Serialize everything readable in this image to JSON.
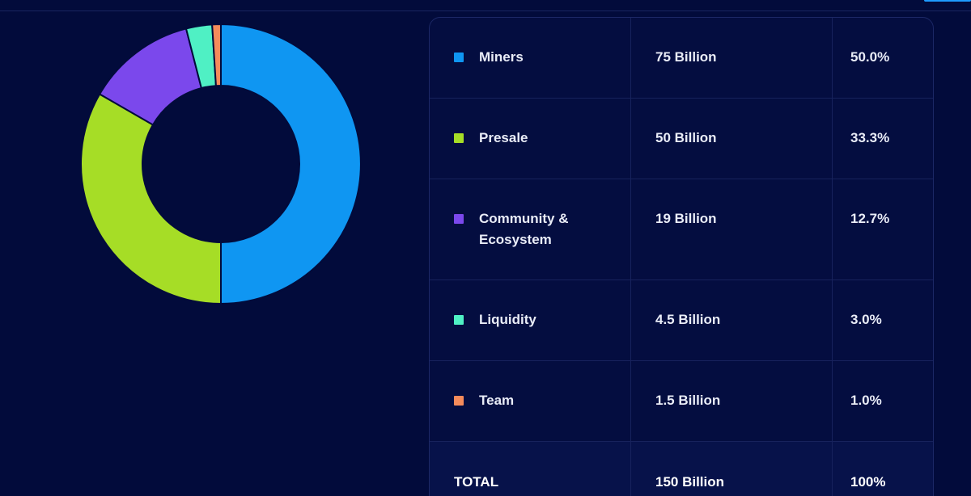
{
  "colors": {
    "background": "#020b3b",
    "miners": "#0f96f2",
    "presale": "#a6dd26",
    "community": "#7b48ec",
    "liquidity": "#4ff0c4",
    "team": "#f58b5b"
  },
  "chart_data": {
    "type": "pie",
    "subtype": "donut",
    "title": "",
    "start_angle": "top",
    "direction": "clockwise",
    "slices": [
      {
        "label": "Miners",
        "value": 75,
        "percent": 50.0,
        "color": "#0f96f2"
      },
      {
        "label": "Presale",
        "value": 50,
        "percent": 33.3,
        "color": "#a6dd26"
      },
      {
        "label": "Community & Ecosystem",
        "value": 19,
        "percent": 12.7,
        "color": "#7b48ec"
      },
      {
        "label": "Liquidity",
        "value": 4.5,
        "percent": 3.0,
        "color": "#4ff0c4"
      },
      {
        "label": "Team",
        "value": 1.5,
        "percent": 1.0,
        "color": "#f58b5b"
      }
    ],
    "units": "Billion"
  },
  "table": {
    "rows": [
      {
        "name_line1": "Miners",
        "name_line2": "",
        "amount": "75 Billion",
        "percent": "50.0%"
      },
      {
        "name_line1": "Presale",
        "name_line2": "",
        "amount": "50 Billion",
        "percent": "33.3%"
      },
      {
        "name_line1": "Community &",
        "name_line2": "Ecosystem",
        "amount": "19 Billion",
        "percent": "12.7%"
      },
      {
        "name_line1": "Liquidity",
        "name_line2": "",
        "amount": "4.5 Billion",
        "percent": "3.0%"
      },
      {
        "name_line1": "Team",
        "name_line2": "",
        "amount": "1.5 Billion",
        "percent": "1.0%"
      }
    ],
    "total": {
      "label": "TOTAL",
      "amount": "150 Billion",
      "percent": "100%"
    }
  }
}
